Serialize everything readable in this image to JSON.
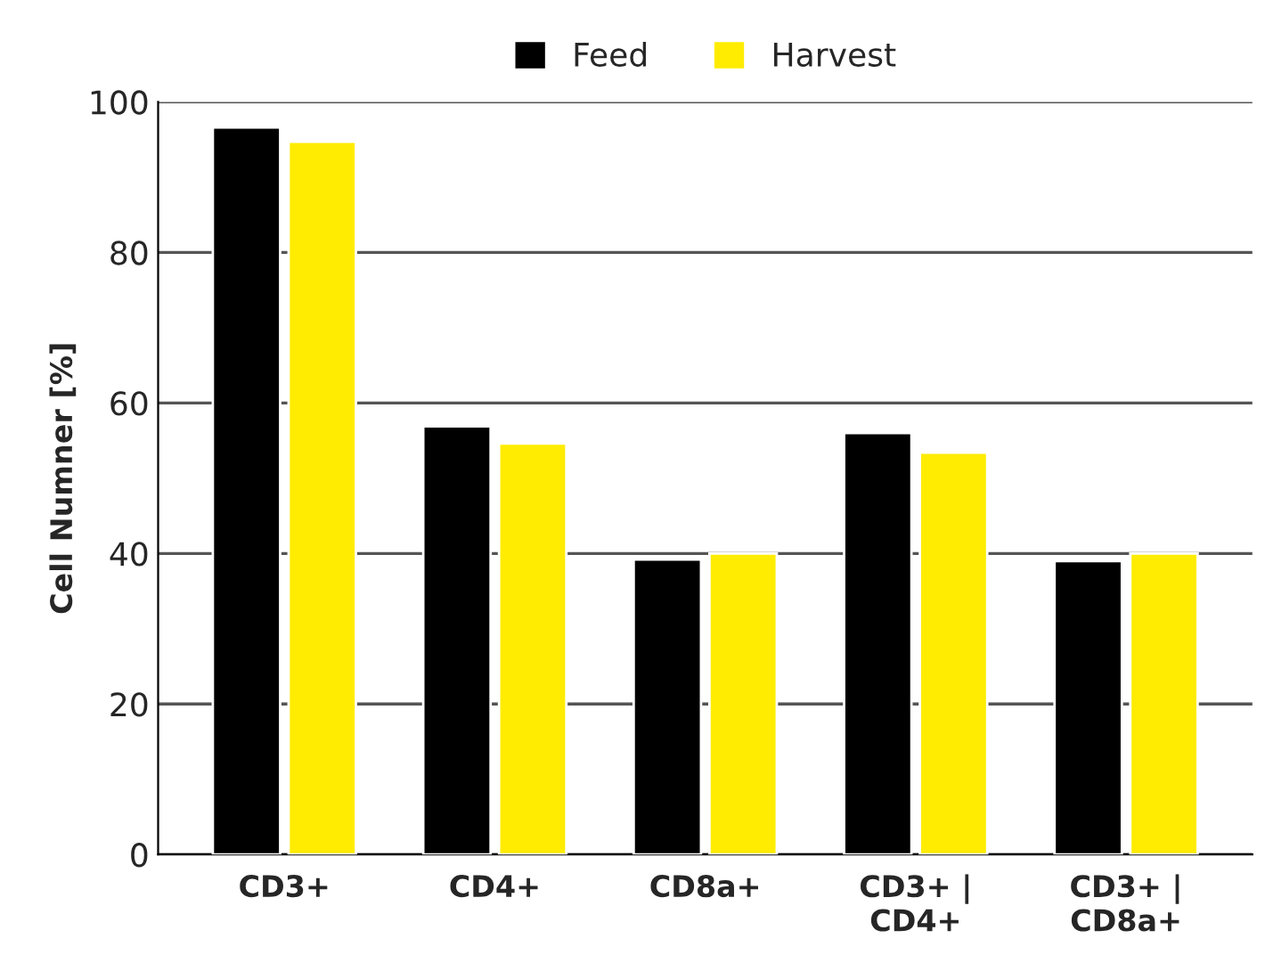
{
  "chart_data": {
    "type": "bar",
    "ylabel": "Cell Numner [%]",
    "categories": [
      "CD3+",
      "CD4+",
      "CD8a+",
      "CD3+ |\nCD4+",
      "CD3+ |\nCD8a+"
    ],
    "series": [
      {
        "name": "Feed",
        "color": "#000000",
        "values": [
          96.6,
          56.9,
          39.2,
          56.0,
          39.0
        ]
      },
      {
        "name": "Harvest",
        "color": "#ffec00",
        "values": [
          94.7,
          54.6,
          40.0,
          53.4,
          40.0
        ]
      }
    ],
    "ylim": [
      0,
      100
    ],
    "yticks": [
      0,
      20,
      40,
      60,
      80,
      100
    ],
    "grid": "y",
    "legend": "top"
  }
}
